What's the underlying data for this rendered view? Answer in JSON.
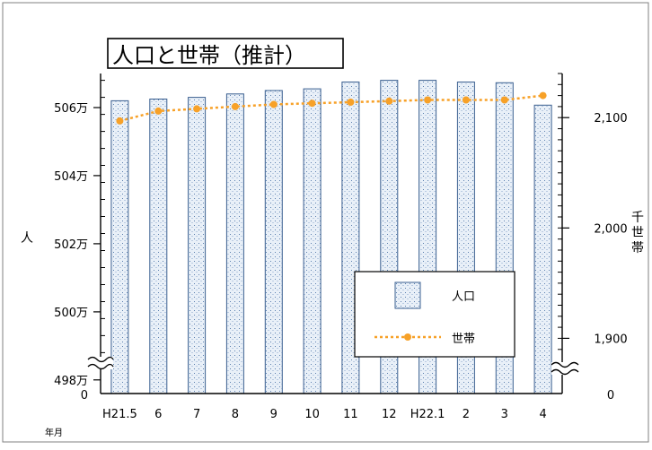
{
  "chart_data": {
    "type": "bar",
    "title": "人口と世帯（推計）",
    "categories": [
      "H21.5",
      "6",
      "7",
      "8",
      "9",
      "10",
      "11",
      "12",
      "H22.1",
      "2",
      "3",
      "4"
    ],
    "xlabel": "年月",
    "series": [
      {
        "name": "人口",
        "type": "bar",
        "axis": "left",
        "color": "#dfe8f4",
        "values": [
          5062000,
          5062500,
          5063000,
          5064000,
          5065000,
          5065500,
          5067500,
          5068000,
          5068000,
          5067500,
          5067300,
          5060700
        ]
      },
      {
        "name": "世帯",
        "type": "line",
        "axis": "right",
        "color": "#f7a128",
        "values": [
          2097,
          2106,
          2108,
          2110,
          2112,
          2113,
          2114,
          2115,
          2116,
          2116,
          2116,
          2120
        ]
      }
    ],
    "y_left": {
      "label": "人",
      "range": [
        4976000,
        5070000
      ],
      "ticks": [
        {
          "value": 5060000,
          "label": "506万"
        },
        {
          "value": 5040000,
          "label": "504万"
        },
        {
          "value": 5020000,
          "label": "502万"
        },
        {
          "value": 5000000,
          "label": "500万"
        },
        {
          "value": 4980000,
          "label": "498万"
        }
      ],
      "zero_label": "0",
      "broken": true
    },
    "y_right": {
      "label": "千世帯",
      "range": [
        1850,
        2140
      ],
      "ticks": [
        {
          "value": 2100,
          "label": "2,100"
        },
        {
          "value": 2000,
          "label": "2,000"
        },
        {
          "value": 1900,
          "label": "1,900"
        }
      ],
      "zero_label": "0",
      "broken": true
    },
    "legend": {
      "placement": "bottom-right",
      "items": [
        "人口",
        "世帯"
      ]
    },
    "grid": false
  }
}
